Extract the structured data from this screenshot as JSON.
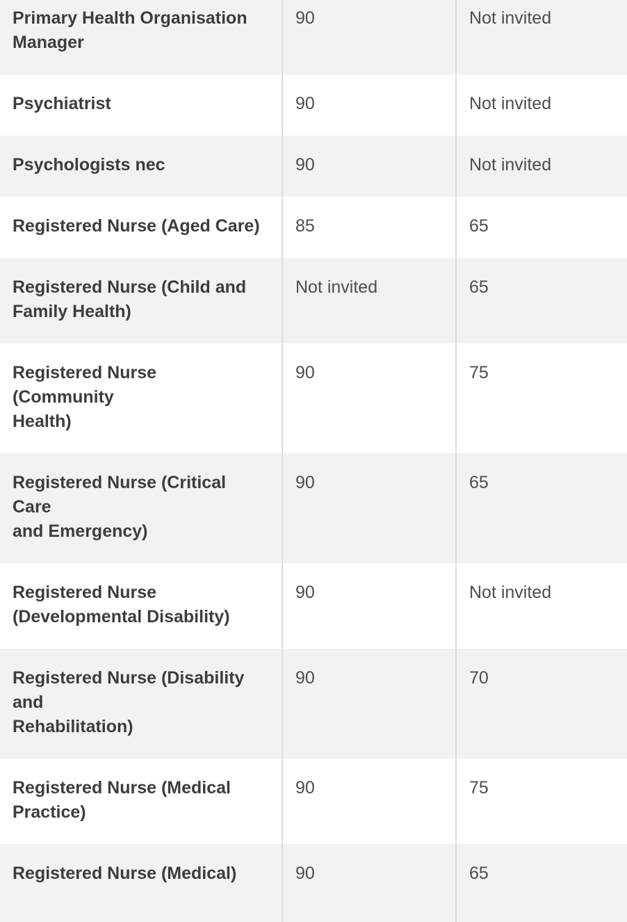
{
  "colors": {
    "row_shade": "#f2f2f2",
    "divider": "#dcdcdc",
    "occupation_text": "#3d3d3d",
    "value_text": "#4d4d4d"
  },
  "table": {
    "rows": [
      {
        "occupation": "Primary Health Organisation\nManager",
        "col2": "90",
        "col3": "Not invited"
      },
      {
        "occupation": "Psychiatrist",
        "col2": "90",
        "col3": "Not invited"
      },
      {
        "occupation": "Psychologists nec",
        "col2": "90",
        "col3": "Not invited"
      },
      {
        "occupation": "Registered Nurse (Aged Care)",
        "col2": "85",
        "col3": "65"
      },
      {
        "occupation": "Registered Nurse (Child and\nFamily Health)",
        "col2": "Not invited",
        "col3": "65"
      },
      {
        "occupation": "Registered Nurse (Community\nHealth)",
        "col2": "90",
        "col3": "75"
      },
      {
        "occupation": "Registered Nurse (Critical Care\nand Emergency)",
        "col2": "90",
        "col3": "65"
      },
      {
        "occupation": "Registered Nurse\n(Developmental Disability)",
        "col2": "90",
        "col3": "Not invited"
      },
      {
        "occupation": "Registered Nurse (Disability and\nRehabilitation)",
        "col2": "90",
        "col3": "70"
      },
      {
        "occupation": "Registered Nurse (Medical\nPractice)",
        "col2": "90",
        "col3": "75"
      },
      {
        "occupation": "Registered Nurse (Medical)",
        "col2": "90",
        "col3": "65"
      }
    ]
  }
}
